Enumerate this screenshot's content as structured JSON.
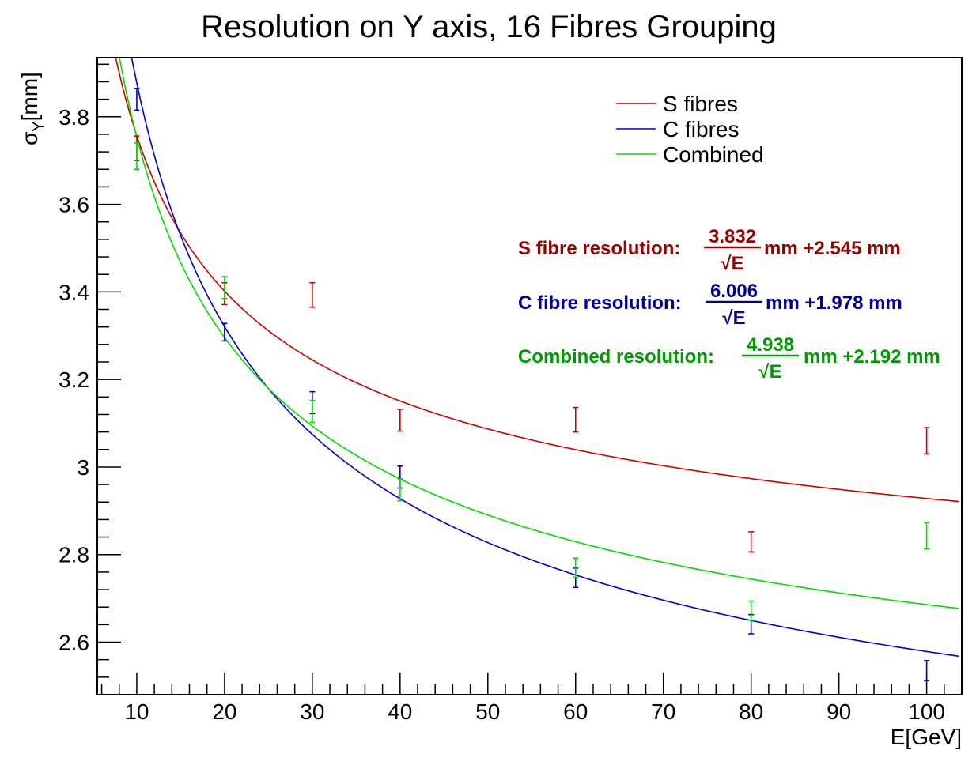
{
  "chart_data": {
    "type": "scatter",
    "title": "Resolution on Y axis, 16 Fibres Grouping",
    "xlabel": "E[GeV]",
    "ylabel_main": "σ",
    "ylabel_sub": "Y",
    "ylabel_unit": "[mm]",
    "xlim": [
      5.5,
      104
    ],
    "ylim": [
      2.48,
      3.935
    ],
    "xticks": [
      10,
      20,
      30,
      40,
      50,
      60,
      70,
      80,
      90,
      100
    ],
    "xtick_labels": [
      "10",
      "20",
      "30",
      "40",
      "50",
      "60",
      "70",
      "80",
      "90",
      "100"
    ],
    "yticks": [
      2.6,
      2.8,
      3.0,
      3.2,
      3.4,
      3.6,
      3.8
    ],
    "ytick_labels": [
      "2.6",
      "2.8",
      "3",
      "3.2",
      "3.4",
      "3.6",
      "3.8"
    ],
    "grid": false,
    "legend_position": "top-right",
    "series": [
      {
        "name": "S fibres",
        "color": "#cc0000",
        "label_color": "#990000",
        "fit": {
          "a": 3.832,
          "b": 2.545
        },
        "points": [
          {
            "x": 10,
            "y": 3.728,
            "err": 0.028
          },
          {
            "x": 20,
            "y": 3.396,
            "err": 0.025
          },
          {
            "x": 30,
            "y": 3.393,
            "err": 0.028
          },
          {
            "x": 40,
            "y": 3.107,
            "err": 0.025
          },
          {
            "x": 60,
            "y": 3.108,
            "err": 0.028
          },
          {
            "x": 80,
            "y": 2.829,
            "err": 0.023
          },
          {
            "x": 100,
            "y": 3.06,
            "err": 0.03
          }
        ]
      },
      {
        "name": "C fibres",
        "color": "#0000cc",
        "label_color": "#000099",
        "fit": {
          "a": 6.006,
          "b": 1.978
        },
        "points": [
          {
            "x": 10,
            "y": 3.84,
            "err": 0.025
          },
          {
            "x": 20,
            "y": 3.308,
            "err": 0.02
          },
          {
            "x": 30,
            "y": 3.147,
            "err": 0.025
          },
          {
            "x": 40,
            "y": 2.977,
            "err": 0.025
          },
          {
            "x": 60,
            "y": 2.747,
            "err": 0.022
          },
          {
            "x": 80,
            "y": 2.641,
            "err": 0.022
          },
          {
            "x": 100,
            "y": 2.535,
            "err": 0.023
          }
        ]
      },
      {
        "name": "Combined",
        "color": "#00dd00",
        "label_color": "#009900",
        "fit": {
          "a": 4.938,
          "b": 2.192
        },
        "points": [
          {
            "x": 10,
            "y": 3.71,
            "err": 0.03
          },
          {
            "x": 20,
            "y": 3.41,
            "err": 0.025
          },
          {
            "x": 30,
            "y": 3.127,
            "err": 0.025
          },
          {
            "x": 40,
            "y": 2.948,
            "err": 0.025
          },
          {
            "x": 60,
            "y": 2.77,
            "err": 0.022
          },
          {
            "x": 80,
            "y": 2.672,
            "err": 0.022
          },
          {
            "x": 100,
            "y": 2.843,
            "err": 0.03
          }
        ]
      }
    ],
    "annotations": [
      {
        "prefix": "S fibre resolution:",
        "numerator": "3.832",
        "denominator": "√E",
        "suffix": "mm +2.545 mm",
        "color": "#990000"
      },
      {
        "prefix": "C fibre resolution:",
        "numerator": "6.006",
        "denominator": "√E",
        "suffix": "mm +1.978 mm",
        "color": "#000099"
      },
      {
        "prefix": "Combined resolution:",
        "numerator": "4.938",
        "denominator": "√E",
        "suffix": "mm +2.192 mm",
        "color": "#009900"
      }
    ]
  }
}
